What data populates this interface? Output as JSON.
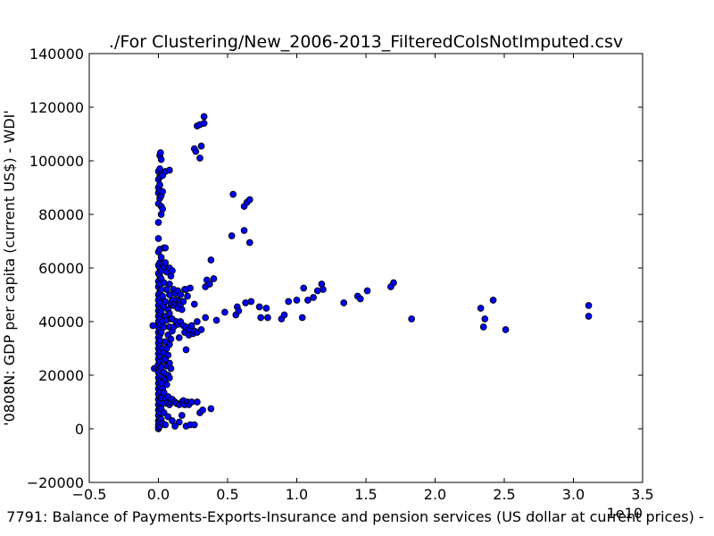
{
  "chart_data": {
    "type": "scatter",
    "title": "./For Clustering/New_2006-2013_FilteredColsNotImputed.csv",
    "xlabel": "7791: Balance of Payments-Exports-Insurance and pension services (US dollar at current prices) -",
    "ylabel": "'0808N: GDP per capita  (current US$) - WDI'",
    "x_offset_text": "1e10",
    "xlim": [
      -0.5,
      3.5
    ],
    "ylim": [
      -20000,
      140000
    ],
    "x_ticks": [
      -0.5,
      0.0,
      0.5,
      1.0,
      1.5,
      2.0,
      2.5,
      3.0,
      3.5
    ],
    "x_tick_labels": [
      "−0.5",
      "0.0",
      "0.5",
      "1.0",
      "1.5",
      "2.0",
      "2.5",
      "3.0",
      "3.5"
    ],
    "y_ticks": [
      -20000,
      0,
      20000,
      40000,
      60000,
      80000,
      100000,
      120000,
      140000
    ],
    "y_tick_labels": [
      "−20000",
      "0",
      "20000",
      "40000",
      "60000",
      "80000",
      "100000",
      "120000",
      "140000"
    ],
    "grid": false,
    "marker_color": "#0000ff",
    "marker_edge_color": "#000000",
    "points": [
      [
        -0.04,
        38500
      ],
      [
        -0.03,
        22500
      ],
      [
        -0.01,
        23000
      ],
      [
        0.0,
        0
      ],
      [
        0.0,
        500
      ],
      [
        0.0,
        1500
      ],
      [
        0.0,
        3000
      ],
      [
        0.0,
        5000
      ],
      [
        0.0,
        7000
      ],
      [
        0.0,
        9000
      ],
      [
        0.0,
        11000
      ],
      [
        0.0,
        13000
      ],
      [
        0.0,
        15000
      ],
      [
        0.0,
        17000
      ],
      [
        0.0,
        19000
      ],
      [
        0.0,
        21000
      ],
      [
        0.0,
        24000
      ],
      [
        0.0,
        26000
      ],
      [
        0.0,
        28000
      ],
      [
        0.0,
        30000
      ],
      [
        0.0,
        32000
      ],
      [
        0.0,
        34000
      ],
      [
        0.0,
        36000
      ],
      [
        0.0,
        38000
      ],
      [
        0.0,
        40000
      ],
      [
        0.0,
        42000
      ],
      [
        0.0,
        44000
      ],
      [
        0.0,
        46000
      ],
      [
        0.0,
        48000
      ],
      [
        0.0,
        50000
      ],
      [
        0.0,
        53000
      ],
      [
        0.0,
        55000
      ],
      [
        0.0,
        58000
      ],
      [
        0.0,
        61000
      ],
      [
        0.0,
        66000
      ],
      [
        0.0,
        71000
      ],
      [
        0.0,
        77000
      ],
      [
        0.0,
        84000
      ],
      [
        0.0,
        88000
      ],
      [
        0.0,
        90000
      ],
      [
        0.0,
        93000
      ],
      [
        0.0,
        96000
      ],
      [
        0.01,
        1000
      ],
      [
        0.01,
        2500
      ],
      [
        0.01,
        4000
      ],
      [
        0.01,
        6000
      ],
      [
        0.01,
        8000
      ],
      [
        0.01,
        10000
      ],
      [
        0.01,
        12000
      ],
      [
        0.01,
        14000
      ],
      [
        0.01,
        16000
      ],
      [
        0.01,
        18000
      ],
      [
        0.01,
        20000
      ],
      [
        0.01,
        22000
      ],
      [
        0.01,
        25000
      ],
      [
        0.01,
        27000
      ],
      [
        0.01,
        29000
      ],
      [
        0.01,
        31000
      ],
      [
        0.01,
        33000
      ],
      [
        0.01,
        35000
      ],
      [
        0.01,
        37000
      ],
      [
        0.01,
        39000
      ],
      [
        0.01,
        41000
      ],
      [
        0.01,
        43000
      ],
      [
        0.01,
        45000
      ],
      [
        0.01,
        47000
      ],
      [
        0.01,
        49000
      ],
      [
        0.01,
        51000
      ],
      [
        0.01,
        54000
      ],
      [
        0.01,
        57000
      ],
      [
        0.01,
        60000
      ],
      [
        0.01,
        62000
      ],
      [
        0.01,
        67000
      ],
      [
        0.01,
        86000
      ],
      [
        0.01,
        89000
      ],
      [
        0.01,
        91000
      ],
      [
        0.01,
        94000
      ],
      [
        0.01,
        97000
      ],
      [
        0.01,
        102000
      ],
      [
        0.015,
        103000
      ],
      [
        0.02,
        100500
      ],
      [
        0.02,
        80000
      ],
      [
        0.02,
        83000
      ],
      [
        0.02,
        87000
      ],
      [
        0.02,
        95000
      ],
      [
        0.02,
        64000
      ],
      [
        0.02,
        59000
      ],
      [
        0.02,
        56000
      ],
      [
        0.02,
        52000
      ],
      [
        0.02,
        44000
      ],
      [
        0.02,
        36000
      ],
      [
        0.02,
        23000
      ],
      [
        0.02,
        17000
      ],
      [
        0.02,
        11500
      ],
      [
        0.02,
        7500
      ],
      [
        0.02,
        3500
      ],
      [
        0.03,
        94500
      ],
      [
        0.03,
        88500
      ],
      [
        0.03,
        82000
      ],
      [
        0.03,
        61500
      ],
      [
        0.03,
        49500
      ],
      [
        0.03,
        40000
      ],
      [
        0.03,
        30000
      ],
      [
        0.03,
        25500
      ],
      [
        0.03,
        19500
      ],
      [
        0.03,
        15000
      ],
      [
        0.03,
        9500
      ],
      [
        0.03,
        2000
      ],
      [
        0.04,
        67500
      ],
      [
        0.04,
        60500
      ],
      [
        0.04,
        54500
      ],
      [
        0.04,
        45500
      ],
      [
        0.04,
        38000
      ],
      [
        0.04,
        28500
      ],
      [
        0.04,
        21000
      ],
      [
        0.04,
        13500
      ],
      [
        0.04,
        6000
      ],
      [
        0.05,
        96000
      ],
      [
        0.05,
        67500
      ],
      [
        0.05,
        62000
      ],
      [
        0.05,
        47500
      ],
      [
        0.05,
        42000
      ],
      [
        0.05,
        32500
      ],
      [
        0.05,
        26000
      ],
      [
        0.05,
        18500
      ],
      [
        0.05,
        11000
      ],
      [
        0.05,
        1500
      ],
      [
        0.06,
        58500
      ],
      [
        0.06,
        52000
      ],
      [
        0.06,
        40500
      ],
      [
        0.06,
        30000
      ],
      [
        0.06,
        23500
      ],
      [
        0.06,
        16500
      ],
      [
        0.06,
        9500
      ],
      [
        0.07,
        44500
      ],
      [
        0.07,
        35000
      ],
      [
        0.07,
        27500
      ],
      [
        0.07,
        20000
      ],
      [
        0.07,
        12000
      ],
      [
        0.07,
        4500
      ],
      [
        0.08,
        96500
      ],
      [
        0.08,
        60000
      ],
      [
        0.08,
        54000
      ],
      [
        0.08,
        50000
      ],
      [
        0.08,
        43000
      ],
      [
        0.08,
        38000
      ],
      [
        0.08,
        31500
      ],
      [
        0.08,
        24500
      ],
      [
        0.08,
        19000
      ],
      [
        0.08,
        9000
      ],
      [
        0.09,
        57000
      ],
      [
        0.09,
        46500
      ],
      [
        0.09,
        41000
      ],
      [
        0.09,
        33500
      ],
      [
        0.09,
        22500
      ],
      [
        0.09,
        10000
      ],
      [
        0.1,
        59000
      ],
      [
        0.1,
        48000
      ],
      [
        0.1,
        41000
      ],
      [
        0.1,
        36500
      ],
      [
        0.1,
        11000
      ],
      [
        0.1,
        3000
      ],
      [
        0.11,
        52000
      ],
      [
        0.11,
        46000
      ],
      [
        0.11,
        38000
      ],
      [
        0.12,
        50500
      ],
      [
        0.12,
        47000
      ],
      [
        0.12,
        10000
      ],
      [
        0.12,
        1000
      ],
      [
        0.13,
        48000
      ],
      [
        0.13,
        40000
      ],
      [
        0.13,
        9500
      ],
      [
        0.14,
        51500
      ],
      [
        0.14,
        45000
      ],
      [
        0.14,
        39000
      ],
      [
        0.15,
        47500
      ],
      [
        0.15,
        34000
      ],
      [
        0.15,
        9000
      ],
      [
        0.15,
        2500
      ],
      [
        0.16,
        50000
      ],
      [
        0.16,
        46500
      ],
      [
        0.16,
        40000
      ],
      [
        0.17,
        44500
      ],
      [
        0.17,
        10000
      ],
      [
        0.17,
        5000
      ],
      [
        0.18,
        47500
      ],
      [
        0.18,
        38500
      ],
      [
        0.18,
        10500
      ],
      [
        0.19,
        52000
      ],
      [
        0.19,
        36000
      ],
      [
        0.19,
        9000
      ],
      [
        0.2,
        52000
      ],
      [
        0.2,
        38000
      ],
      [
        0.2,
        29500
      ],
      [
        0.2,
        1000
      ],
      [
        0.21,
        49500
      ],
      [
        0.21,
        10000
      ],
      [
        0.22,
        37000
      ],
      [
        0.22,
        35000
      ],
      [
        0.22,
        9000
      ],
      [
        0.23,
        52500
      ],
      [
        0.23,
        1500
      ],
      [
        0.24,
        38500
      ],
      [
        0.24,
        10000
      ],
      [
        0.25,
        35500
      ],
      [
        0.26,
        104500
      ],
      [
        0.26,
        46500
      ],
      [
        0.26,
        36500
      ],
      [
        0.26,
        1500
      ],
      [
        0.27,
        103500
      ],
      [
        0.28,
        113000
      ],
      [
        0.28,
        40000
      ],
      [
        0.28,
        36000
      ],
      [
        0.28,
        10000
      ],
      [
        0.3,
        113500
      ],
      [
        0.3,
        101000
      ],
      [
        0.3,
        6000
      ],
      [
        0.31,
        105500
      ],
      [
        0.31,
        37000
      ],
      [
        0.32,
        7000
      ],
      [
        0.33,
        114000
      ],
      [
        0.33,
        116500
      ],
      [
        0.34,
        53000
      ],
      [
        0.34,
        41500
      ],
      [
        0.35,
        55500
      ],
      [
        0.37,
        54000
      ],
      [
        0.38,
        63000
      ],
      [
        0.38,
        7500
      ],
      [
        0.4,
        56000
      ],
      [
        0.42,
        40500
      ],
      [
        0.48,
        43500
      ],
      [
        0.53,
        72000
      ],
      [
        0.54,
        87500
      ],
      [
        0.56,
        42500
      ],
      [
        0.57,
        45500
      ],
      [
        0.58,
        44000
      ],
      [
        0.62,
        74000
      ],
      [
        0.62,
        83000
      ],
      [
        0.63,
        47000
      ],
      [
        0.64,
        84500
      ],
      [
        0.66,
        85500
      ],
      [
        0.66,
        69500
      ],
      [
        0.67,
        47500
      ],
      [
        0.73,
        45500
      ],
      [
        0.74,
        41500
      ],
      [
        0.78,
        45000
      ],
      [
        0.79,
        41500
      ],
      [
        0.89,
        41000
      ],
      [
        0.91,
        42500
      ],
      [
        0.94,
        47500
      ],
      [
        1.0,
        48000
      ],
      [
        1.04,
        41500
      ],
      [
        1.05,
        52500
      ],
      [
        1.08,
        48000
      ],
      [
        1.12,
        49000
      ],
      [
        1.15,
        51500
      ],
      [
        1.18,
        54000
      ],
      [
        1.19,
        52000
      ],
      [
        1.34,
        47000
      ],
      [
        1.44,
        49500
      ],
      [
        1.46,
        48500
      ],
      [
        1.51,
        51500
      ],
      [
        1.68,
        53000
      ],
      [
        1.7,
        54500
      ],
      [
        1.83,
        41000
      ],
      [
        2.33,
        45000
      ],
      [
        2.35,
        38000
      ],
      [
        2.36,
        41000
      ],
      [
        2.42,
        48000
      ],
      [
        2.51,
        37000
      ],
      [
        3.11,
        46000
      ],
      [
        3.11,
        42000
      ]
    ]
  }
}
